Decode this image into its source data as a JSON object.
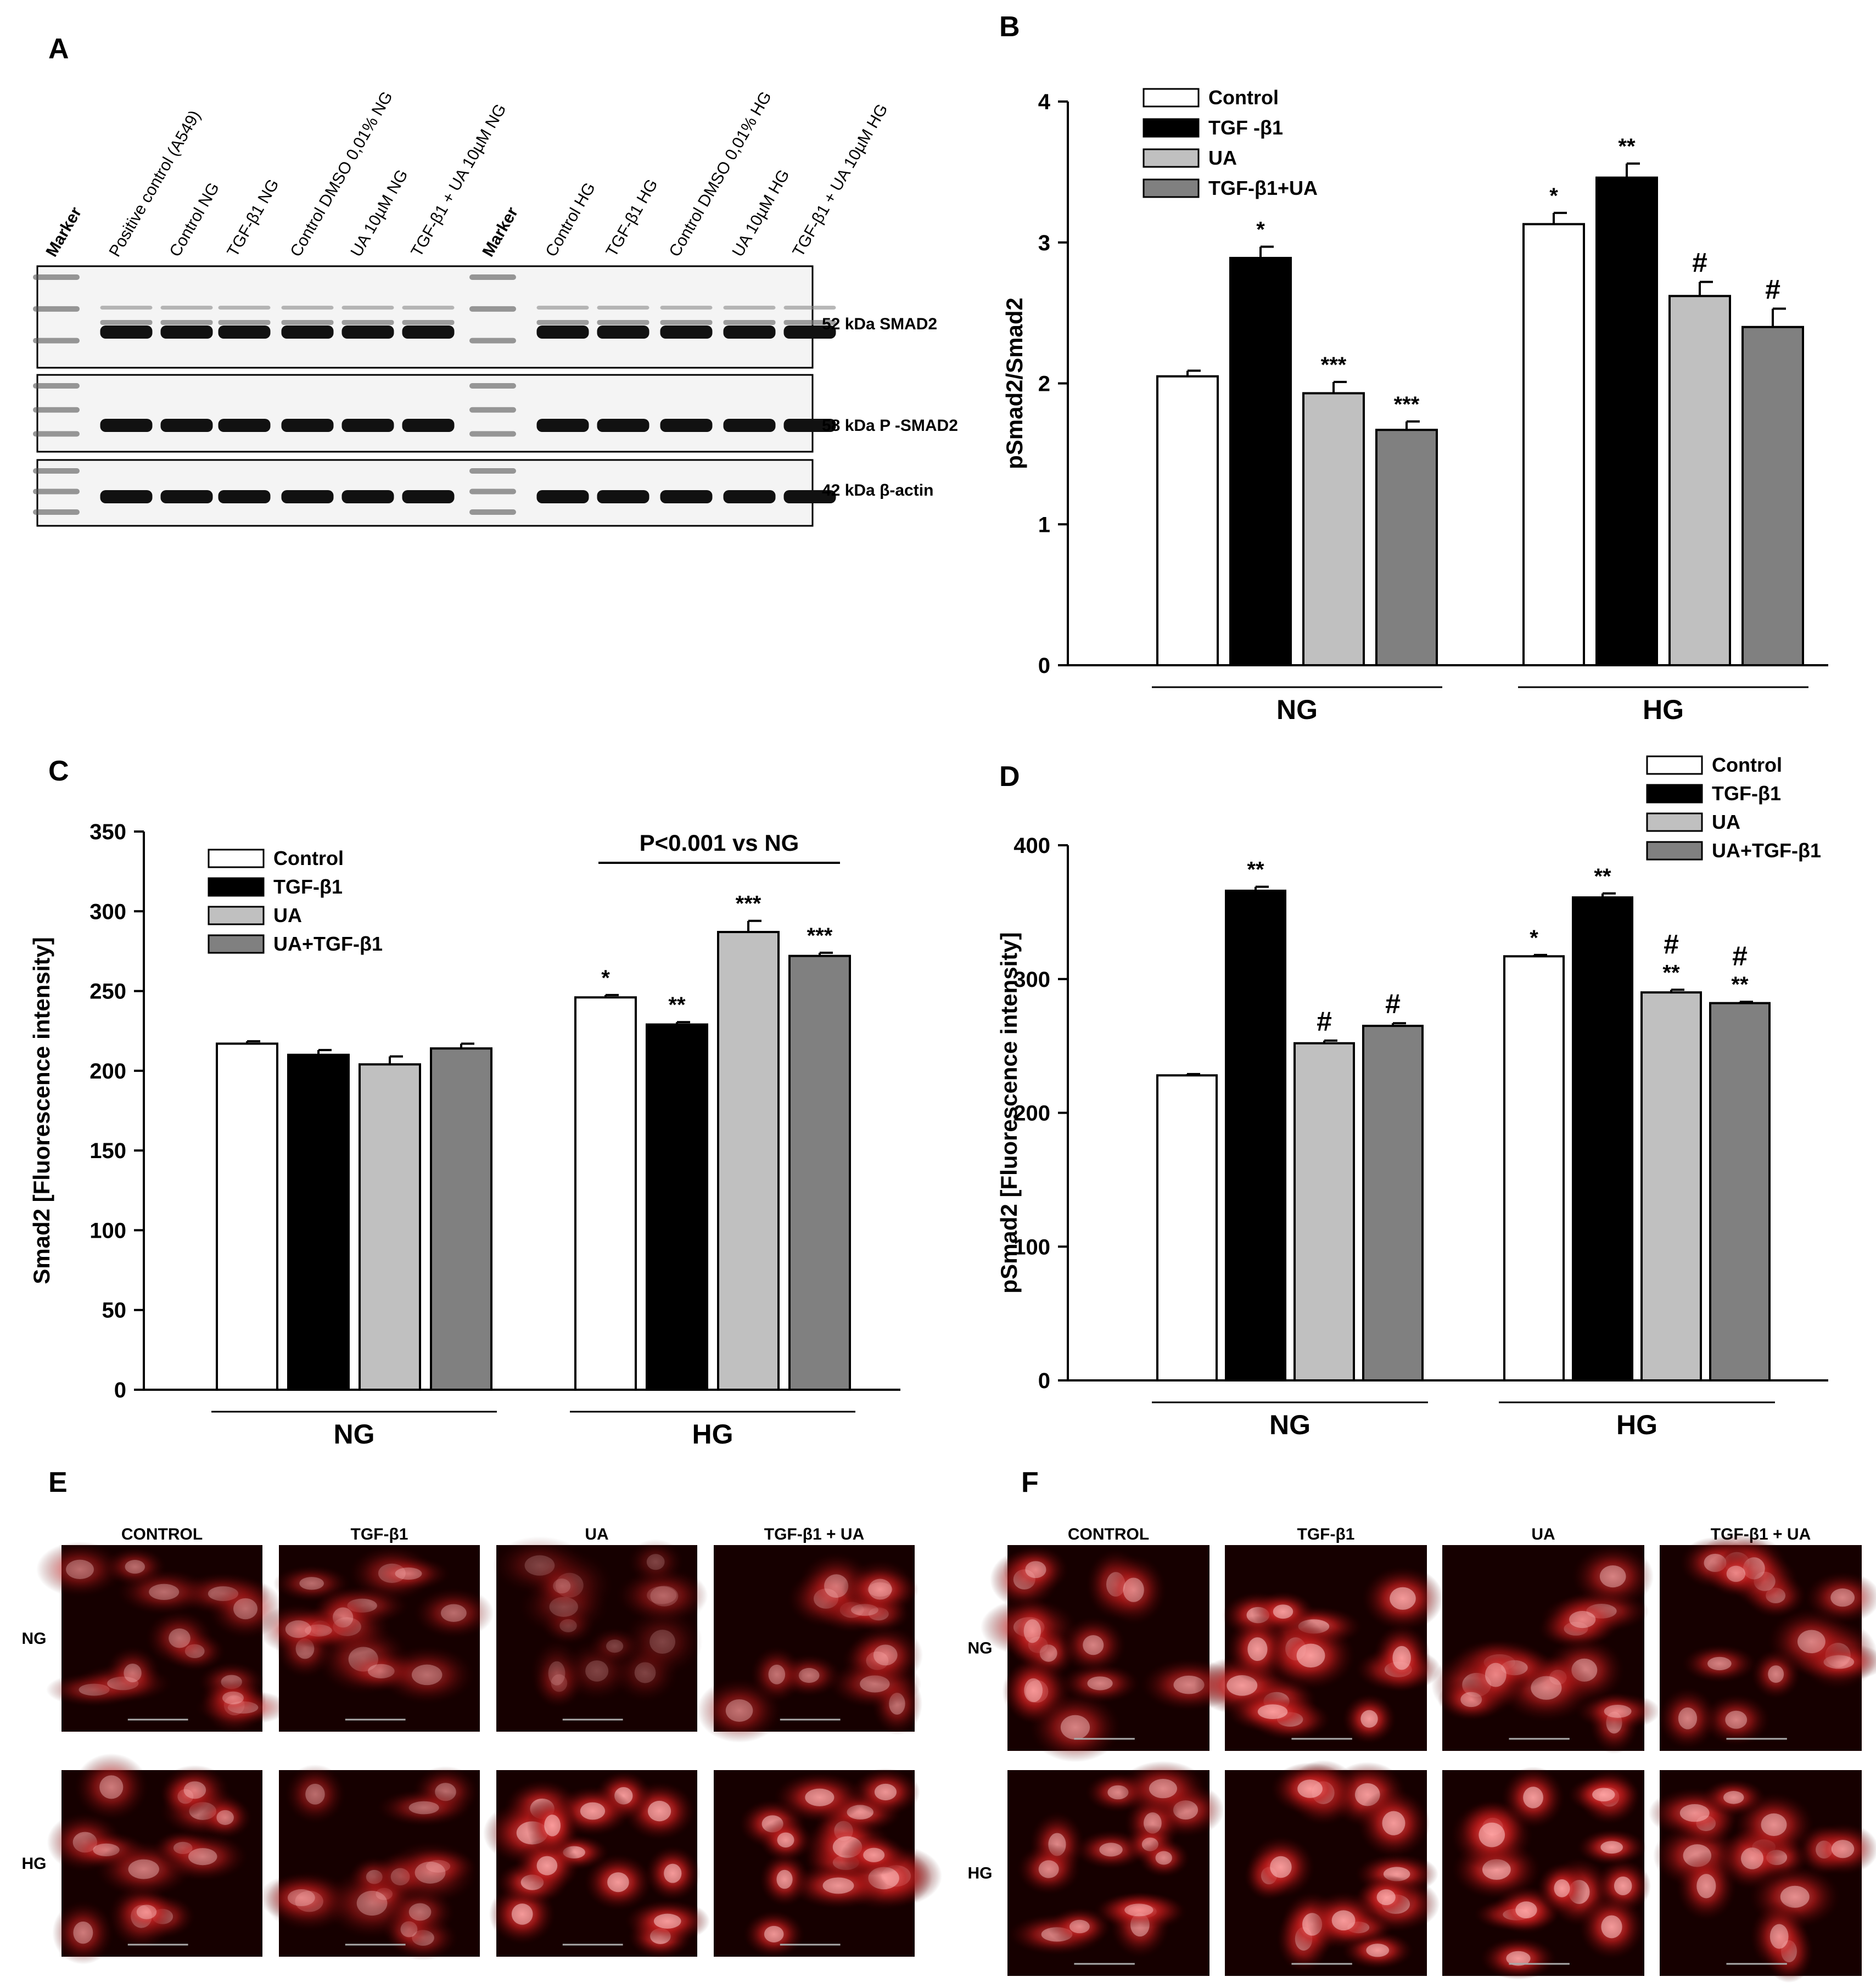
{
  "panel_letters": [
    "A",
    "B",
    "C",
    "D",
    "E",
    "F"
  ],
  "colors": {
    "control": "#ffffff",
    "tgf": "#000000",
    "ua": "#c0c0c0",
    "combo": "#808080",
    "axis": "#000000"
  },
  "blot": {
    "lanes_left": [
      "Marker",
      "Positive control (A549)",
      "Control NG",
      "TGF-β1 NG",
      "Control DMSO 0,01% NG",
      "UA 10µM NG",
      "TGF-β1 + UA 10µM NG"
    ],
    "lanes_right": [
      "Marker",
      "Control HG",
      "TGF-β1 HG",
      "Control DMSO 0,01% HG",
      "UA 10µM HG",
      "TGF-β1 + UA 10µM HG"
    ],
    "bands": [
      "52 kDa SMAD2",
      "58 kDa P -SMAD2",
      "42 kDa  β-actin"
    ]
  },
  "chart_data": [
    {
      "panel": "B",
      "type": "bar",
      "ylabel": "pSmad2/Smad2",
      "ylim": [
        0,
        4
      ],
      "yticks": [
        "0",
        "1",
        "2",
        "3",
        "4"
      ],
      "groups": [
        "NG",
        "HG"
      ],
      "legend": [
        "Control",
        "TGF -β1",
        "UA",
        "TGF-β1+UA"
      ],
      "legend_position": "top-left",
      "series": [
        {
          "name": "Control",
          "values": [
            2.05,
            3.13
          ],
          "errors": [
            0.04,
            0.08
          ],
          "marks": [
            "",
            "*"
          ]
        },
        {
          "name": "TGF -β1",
          "values": [
            2.89,
            3.46
          ],
          "errors": [
            0.08,
            0.1
          ],
          "marks": [
            "*",
            "**"
          ]
        },
        {
          "name": "UA",
          "values": [
            1.93,
            2.62
          ],
          "errors": [
            0.08,
            0.1
          ],
          "marks": [
            "***",
            "#"
          ]
        },
        {
          "name": "TGF-β1+UA",
          "values": [
            1.67,
            2.4
          ],
          "errors": [
            0.06,
            0.13
          ],
          "marks": [
            "***",
            "#"
          ]
        }
      ]
    },
    {
      "panel": "C",
      "type": "bar",
      "ylabel": "Smad2 [Fluorescence intensity]",
      "ylim": [
        0,
        350
      ],
      "yticks": [
        "0",
        "50",
        "100",
        "150",
        "200",
        "250",
        "300",
        "350"
      ],
      "groups": [
        "NG",
        "HG"
      ],
      "legend": [
        "Control",
        "TGF-β1",
        "UA",
        "UA+TGF-β1"
      ],
      "legend_position": "top-left",
      "annotation": "P<0.001 vs NG",
      "series": [
        {
          "name": "Control",
          "values": [
            217,
            246
          ],
          "errors": [
            1.5,
            1.5
          ],
          "marks": [
            "",
            "*"
          ]
        },
        {
          "name": "TGF-β1",
          "values": [
            210,
            229
          ],
          "errors": [
            3,
            1.5
          ],
          "marks": [
            "",
            "**"
          ]
        },
        {
          "name": "UA",
          "values": [
            204,
            287
          ],
          "errors": [
            5,
            7
          ],
          "marks": [
            "",
            "***"
          ]
        },
        {
          "name": "UA+TGF-β1",
          "values": [
            214,
            272
          ],
          "errors": [
            3,
            2
          ],
          "marks": [
            "",
            "***"
          ]
        }
      ]
    },
    {
      "panel": "D",
      "type": "bar",
      "ylabel": "pSmad2 [Fluorescence intensity]",
      "ylim": [
        0,
        400
      ],
      "yticks": [
        "0",
        "100",
        "200",
        "300",
        "400"
      ],
      "groups": [
        "NG",
        "HG"
      ],
      "legend": [
        "Control",
        "TGF-β1",
        "UA",
        "UA+TGF-β1"
      ],
      "legend_position": "top-right",
      "series": [
        {
          "name": "Control",
          "values": [
            228,
            317
          ],
          "errors": [
            1,
            1
          ],
          "marks": [
            "",
            "*"
          ]
        },
        {
          "name": "TGF-β1",
          "values": [
            366,
            361
          ],
          "errors": [
            3,
            3
          ],
          "marks": [
            "**",
            "**"
          ]
        },
        {
          "name": "UA",
          "values": [
            252,
            290
          ],
          "errors": [
            2,
            2
          ],
          "marks": [
            "#",
            "#\n**"
          ]
        },
        {
          "name": "UA+TGF-β1",
          "values": [
            265,
            282
          ],
          "errors": [
            2,
            1
          ],
          "marks": [
            "#",
            "#\n**"
          ]
        }
      ]
    }
  ],
  "micrographs": {
    "E": {
      "columns": [
        "CONTROL",
        "TGF-β1",
        "UA",
        "TGF-β1 + UA"
      ],
      "rows": [
        "NG",
        "HG"
      ]
    },
    "F": {
      "columns": [
        "CONTROL",
        "TGF-β1",
        "UA",
        "TGF-β1 + UA"
      ],
      "rows": [
        "NG",
        "HG"
      ]
    }
  }
}
